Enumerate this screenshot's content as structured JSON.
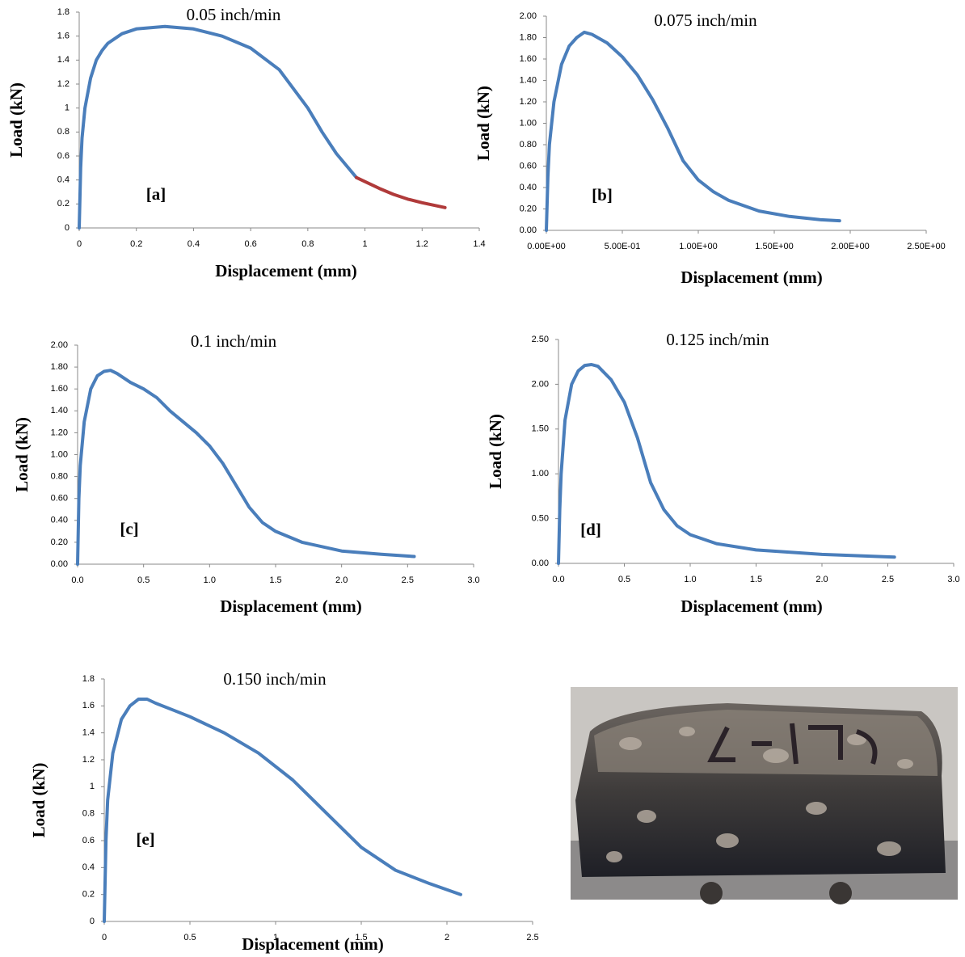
{
  "chart_data": [
    {
      "type": "line",
      "title": "0.05 inch/min",
      "annotation": "[a]",
      "xlabel": "Displacement (mm)",
      "ylabel": "Load (kN)",
      "xlim": [
        0,
        1.4
      ],
      "ylim": [
        0,
        1.8
      ],
      "xticks": [
        0,
        0.2,
        0.4,
        0.6,
        0.8,
        1,
        1.2,
        1.4
      ],
      "yticks": [
        0,
        0.2,
        0.4,
        0.6,
        0.8,
        1,
        1.2,
        1.4,
        1.6,
        1.8
      ],
      "series": [
        {
          "color": "#4a7ebb",
          "x": [
            0,
            0.005,
            0.01,
            0.02,
            0.04,
            0.06,
            0.08,
            0.1,
            0.15,
            0.2,
            0.3,
            0.4,
            0.5,
            0.6,
            0.7,
            0.8,
            0.85,
            0.9,
            0.97
          ],
          "values": [
            0,
            0.5,
            0.75,
            1.0,
            1.25,
            1.4,
            1.48,
            1.54,
            1.62,
            1.66,
            1.68,
            1.66,
            1.6,
            1.5,
            1.32,
            1.0,
            0.8,
            0.62,
            0.42
          ]
        },
        {
          "color": "#b03a3a",
          "x": [
            0.97,
            1.05,
            1.1,
            1.15,
            1.2,
            1.28
          ],
          "values": [
            0.42,
            0.33,
            0.28,
            0.24,
            0.21,
            0.17
          ]
        }
      ]
    },
    {
      "type": "line",
      "title": "0.075 inch/min",
      "annotation": "[b]",
      "xlabel": "Displacement (mm)",
      "ylabel": "Load (kN)",
      "xlim": [
        0,
        2.5
      ],
      "ylim": [
        0,
        2
      ],
      "xticks": [
        {
          "value": 0,
          "label": "0.00E+00"
        },
        {
          "value": 0.5,
          "label": "5.00E-01"
        },
        {
          "value": 1,
          "label": "1.00E+00"
        },
        {
          "value": 1.5,
          "label": "1.50E+00"
        },
        {
          "value": 2,
          "label": "2.00E+00"
        },
        {
          "value": 2.5,
          "label": "2.50E+00"
        }
      ],
      "yticks": [
        {
          "value": 0,
          "label": "0.00"
        },
        {
          "value": 0.2,
          "label": "0.20"
        },
        {
          "value": 0.4,
          "label": "0.40"
        },
        {
          "value": 0.6,
          "label": "0.60"
        },
        {
          "value": 0.8,
          "label": "0.80"
        },
        {
          "value": 1,
          "label": "1.00"
        },
        {
          "value": 1.2,
          "label": "1.20"
        },
        {
          "value": 1.4,
          "label": "1.40"
        },
        {
          "value": 1.6,
          "label": "1.60"
        },
        {
          "value": 1.8,
          "label": "1.80"
        },
        {
          "value": 2,
          "label": "2.00"
        }
      ],
      "series": [
        {
          "color": "#4a7ebb",
          "x": [
            0,
            0.01,
            0.02,
            0.05,
            0.1,
            0.15,
            0.2,
            0.25,
            0.3,
            0.4,
            0.5,
            0.6,
            0.7,
            0.8,
            0.9,
            1.0,
            1.1,
            1.2,
            1.4,
            1.6,
            1.8,
            1.93
          ],
          "values": [
            0,
            0.5,
            0.8,
            1.2,
            1.55,
            1.72,
            1.8,
            1.85,
            1.83,
            1.75,
            1.62,
            1.45,
            1.22,
            0.95,
            0.65,
            0.47,
            0.36,
            0.28,
            0.18,
            0.13,
            0.1,
            0.09
          ]
        }
      ]
    },
    {
      "type": "line",
      "title": "0.1 inch/min",
      "annotation": "[c]",
      "xlabel": "Displacement (mm)",
      "ylabel": "Load (kN)",
      "xlim": [
        0,
        3
      ],
      "ylim": [
        0,
        2
      ],
      "xticks": [
        {
          "value": 0,
          "label": "0.0"
        },
        0.5,
        {
          "value": 1,
          "label": "1.0"
        },
        1.5,
        {
          "value": 2,
          "label": "2.0"
        },
        2.5,
        {
          "value": 3,
          "label": "3.0"
        }
      ],
      "yticks": [
        {
          "value": 0,
          "label": "0.00"
        },
        {
          "value": 0.2,
          "label": "0.20"
        },
        {
          "value": 0.4,
          "label": "0.40"
        },
        {
          "value": 0.6,
          "label": "0.60"
        },
        {
          "value": 0.8,
          "label": "0.80"
        },
        {
          "value": 1,
          "label": "1.00"
        },
        {
          "value": 1.2,
          "label": "1.20"
        },
        {
          "value": 1.4,
          "label": "1.40"
        },
        {
          "value": 1.6,
          "label": "1.60"
        },
        {
          "value": 1.8,
          "label": "1.80"
        },
        {
          "value": 2,
          "label": "2.00"
        }
      ],
      "series": [
        {
          "color": "#4a7ebb",
          "x": [
            0,
            0.01,
            0.02,
            0.05,
            0.1,
            0.15,
            0.2,
            0.25,
            0.3,
            0.4,
            0.5,
            0.6,
            0.7,
            0.8,
            0.9,
            1.0,
            1.1,
            1.2,
            1.3,
            1.4,
            1.5,
            1.7,
            2.0,
            2.3,
            2.55
          ],
          "values": [
            0,
            0.6,
            0.9,
            1.3,
            1.6,
            1.72,
            1.76,
            1.77,
            1.74,
            1.66,
            1.6,
            1.52,
            1.4,
            1.3,
            1.2,
            1.08,
            0.92,
            0.72,
            0.52,
            0.38,
            0.3,
            0.2,
            0.12,
            0.09,
            0.07
          ]
        }
      ]
    },
    {
      "type": "line",
      "title": "0.125 inch/min",
      "annotation": "[d]",
      "xlabel": "Displacement (mm)",
      "ylabel": "Load (kN)",
      "xlim": [
        0,
        3
      ],
      "ylim": [
        0,
        2.5
      ],
      "xticks": [
        {
          "value": 0,
          "label": "0.0"
        },
        0.5,
        {
          "value": 1,
          "label": "1.0"
        },
        1.5,
        {
          "value": 2,
          "label": "2.0"
        },
        2.5,
        {
          "value": 3,
          "label": "3.0"
        }
      ],
      "yticks": [
        {
          "value": 0,
          "label": "0.00"
        },
        {
          "value": 0.5,
          "label": "0.50"
        },
        {
          "value": 1,
          "label": "1.00"
        },
        {
          "value": 1.5,
          "label": "1.50"
        },
        {
          "value": 2,
          "label": "2.00"
        },
        {
          "value": 2.5,
          "label": "2.50"
        }
      ],
      "series": [
        {
          "color": "#4a7ebb",
          "x": [
            0,
            0.01,
            0.02,
            0.05,
            0.1,
            0.15,
            0.2,
            0.25,
            0.3,
            0.4,
            0.5,
            0.6,
            0.7,
            0.8,
            0.9,
            1.0,
            1.2,
            1.5,
            2.0,
            2.55
          ],
          "values": [
            0,
            0.6,
            1.0,
            1.6,
            2.0,
            2.15,
            2.21,
            2.22,
            2.2,
            2.05,
            1.8,
            1.4,
            0.9,
            0.6,
            0.42,
            0.32,
            0.22,
            0.15,
            0.1,
            0.07
          ]
        }
      ]
    },
    {
      "type": "line",
      "title": "0.150 inch/min",
      "annotation": "[e]",
      "xlabel": "Displacement (mm)",
      "ylabel": "Load (kN)",
      "xlim": [
        0,
        2.5
      ],
      "ylim": [
        0,
        1.8
      ],
      "xticks": [
        0,
        0.5,
        1,
        1.5,
        2,
        2.5
      ],
      "yticks": [
        0,
        0.2,
        0.4,
        0.6,
        0.8,
        1,
        1.2,
        1.4,
        1.6,
        1.8
      ],
      "series": [
        {
          "color": "#4a7ebb",
          "x": [
            0,
            0.01,
            0.02,
            0.05,
            0.1,
            0.15,
            0.2,
            0.25,
            0.3,
            0.4,
            0.5,
            0.7,
            0.9,
            1.1,
            1.3,
            1.5,
            1.7,
            1.9,
            2.08
          ],
          "values": [
            0,
            0.6,
            0.9,
            1.25,
            1.5,
            1.6,
            1.65,
            1.65,
            1.62,
            1.57,
            1.52,
            1.4,
            1.25,
            1.05,
            0.8,
            0.55,
            0.38,
            0.28,
            0.2
          ]
        }
      ]
    }
  ]
}
